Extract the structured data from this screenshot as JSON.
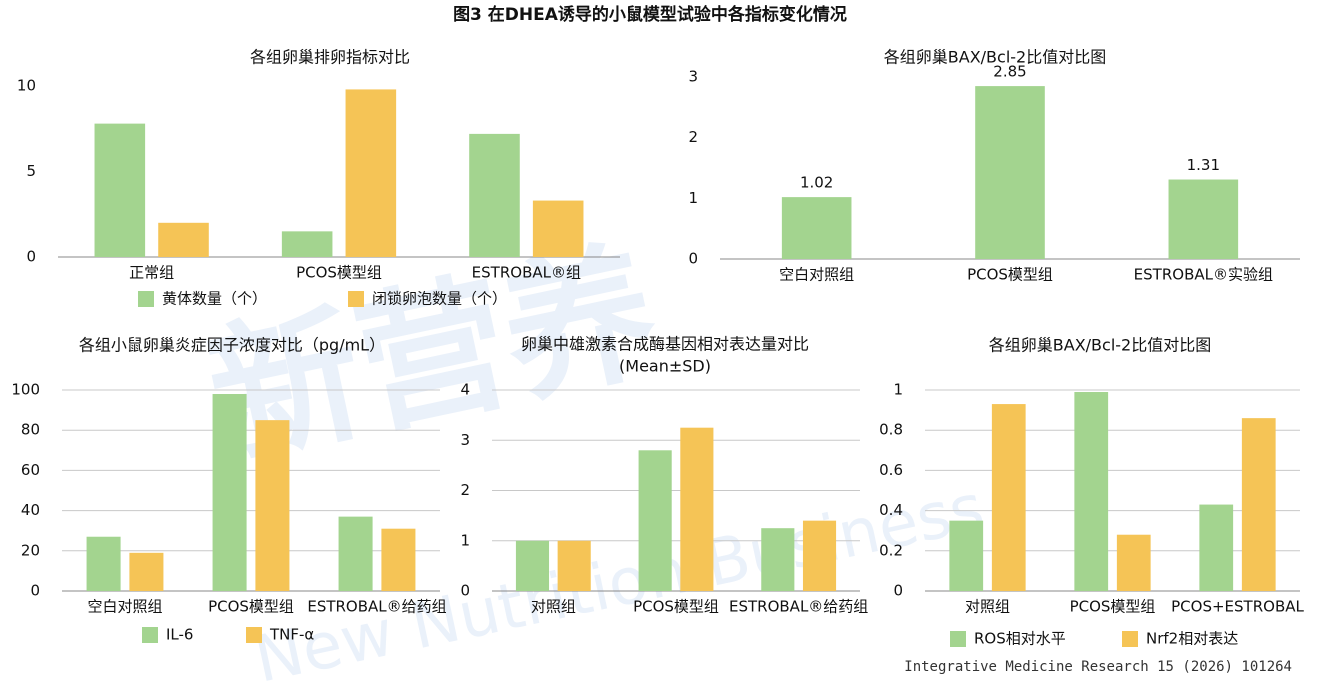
{
  "title": "图3 在DHEA诱导的小鼠模型试验中各指标变化情况",
  "source": "Integrative Medicine Research 15 (2026) 101264",
  "watermark": [
    "新营养",
    "New Nutrition Business"
  ],
  "chart_data": [
    {
      "type": "bar",
      "title": "各组卵巢排卵指标对比",
      "categories": [
        "正常组",
        "PCOS模型组",
        "ESTROBAL®组"
      ],
      "series": [
        {
          "name": "黄体数量（个）",
          "color": "#a3d48f",
          "values": [
            7.8,
            1.5,
            7.2
          ]
        },
        {
          "name": "闭锁卵泡数量（个）",
          "color": "#f5c456",
          "values": [
            2.0,
            9.8,
            3.3
          ]
        }
      ],
      "ylim": [
        0,
        10
      ],
      "yticks": [
        0,
        5,
        10
      ],
      "grid": false,
      "legend": "bottom"
    },
    {
      "type": "bar",
      "title": "各组卵巢BAX/Bcl-2比值对比图",
      "categories": [
        "空白对照组",
        "PCOS模型组",
        "ESTROBAL®实验组"
      ],
      "values": [
        1.02,
        2.85,
        1.31
      ],
      "color": "#a3d48f",
      "data_labels": true,
      "ylim": [
        0,
        3
      ],
      "yticks": [
        0,
        1,
        2,
        3
      ],
      "grid": false
    },
    {
      "type": "bar",
      "title": "各组小鼠卵巢炎症因子浓度对比（pg/mL）",
      "categories": [
        "空白对照组",
        "PCOS模型组",
        "ESTROBAL®给药组"
      ],
      "series": [
        {
          "name": "IL-6",
          "color": "#a3d48f",
          "values": [
            27,
            98,
            37
          ]
        },
        {
          "name": "TNF-α",
          "color": "#f5c456",
          "values": [
            19,
            85,
            31
          ]
        }
      ],
      "ylim": [
        0,
        100
      ],
      "yticks": [
        0,
        20,
        40,
        60,
        80,
        100
      ],
      "grid": true,
      "legend": "bottom"
    },
    {
      "type": "bar",
      "title": "卵巢中雄激素合成酶基因相对表达量对比",
      "subtitle": "(Mean±SD)",
      "categories": [
        "对照组",
        "PCOS模型组",
        "ESTROBAL®给药组"
      ],
      "series": [
        {
          "color": "#a3d48f",
          "values": [
            1.0,
            2.8,
            1.25
          ]
        },
        {
          "color": "#f5c456",
          "values": [
            1.0,
            3.25,
            1.4
          ]
        }
      ],
      "ylim": [
        0,
        4
      ],
      "yticks": [
        0,
        1,
        2,
        3,
        4
      ],
      "grid": true
    },
    {
      "type": "bar",
      "title": "各组卵巢BAX/Bcl-2比值对比图",
      "categories": [
        "对照组",
        "PCOS模型组",
        "PCOS+ESTROBAL"
      ],
      "series": [
        {
          "name": "ROS相对水平",
          "color": "#a3d48f",
          "values": [
            0.35,
            0.99,
            0.43
          ]
        },
        {
          "name": "Nrf2相对表达",
          "color": "#f5c456",
          "values": [
            0.93,
            0.28,
            0.86
          ]
        }
      ],
      "ylim": [
        0,
        1
      ],
      "yticks": [
        0,
        0.2,
        0.4,
        0.6,
        0.8,
        1
      ],
      "grid": true,
      "legend": "bottom"
    }
  ]
}
